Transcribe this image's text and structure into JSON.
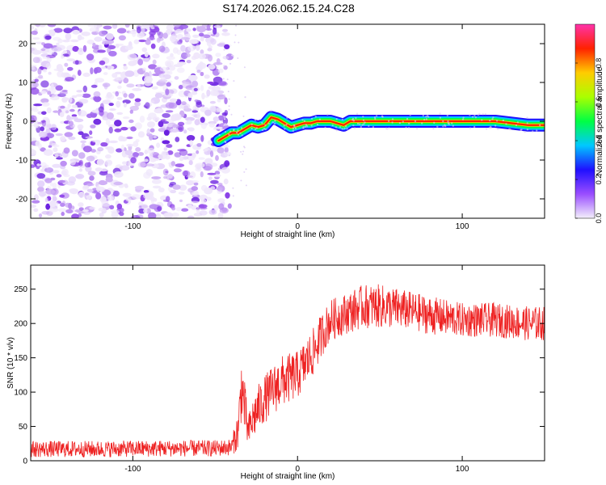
{
  "title": "S174.2026.062.15.24.C28",
  "chart_data": [
    {
      "type": "heatmap",
      "name": "spectrogram",
      "xlabel": "Height of straight line (km)",
      "ylabel": "Frequency (Hz)",
      "xlim": [
        -162,
        150
      ],
      "ylim": [
        -25,
        25
      ],
      "xticks": [
        -100,
        0,
        100
      ],
      "yticks": [
        -20,
        -10,
        0,
        10,
        20
      ],
      "noise_region_x": [
        -162,
        -45
      ],
      "signal_track": {
        "x": [
          -48,
          -44,
          -40,
          -36,
          -32,
          -28,
          -24,
          -20,
          -16,
          -12,
          -8,
          -4,
          0,
          4,
          8,
          12,
          16,
          20,
          24,
          28,
          32,
          36,
          40,
          50,
          60,
          80,
          100,
          120,
          140,
          150
        ],
        "freq": [
          -5,
          -4,
          -3,
          -3,
          -2,
          -1,
          -1.5,
          -1,
          1,
          0.5,
          -0.5,
          -1.5,
          -1,
          -0.5,
          -0.5,
          0,
          0,
          0,
          -0.5,
          -1,
          0,
          0,
          0,
          0,
          0,
          0,
          0,
          0,
          -1,
          -1
        ]
      },
      "colorbar": {
        "label": "Normalized spectral amplitude",
        "range": [
          0,
          1
        ],
        "ticks": [
          "0.0",
          "0.2",
          "0.4",
          "0.6",
          "0.8"
        ],
        "tick_values": [
          0,
          0.2,
          0.4,
          0.6,
          0.8
        ],
        "colors": [
          "#f4f0fb",
          "#9a4dff",
          "#1f10ff",
          "#00c8ff",
          "#00ff44",
          "#aaff00",
          "#ffcc00",
          "#ff2200",
          "#ff33aa"
        ]
      }
    },
    {
      "type": "line",
      "name": "snr",
      "xlabel": "Height of straight line (km)",
      "ylabel": "SNR (10 * v/v)",
      "xlim": [
        -162,
        150
      ],
      "ylim": [
        0,
        285
      ],
      "xticks": [
        -100,
        0,
        100
      ],
      "yticks": [
        0,
        50,
        100,
        150,
        200,
        250
      ],
      "color": "#ee2222",
      "envelope": {
        "x": [
          -162,
          -120,
          -80,
          -50,
          -40,
          -36,
          -34,
          -32,
          -30,
          -28,
          -25,
          -20,
          -10,
          0,
          10,
          15,
          20,
          30,
          40,
          50,
          60,
          70,
          80,
          100,
          120,
          140,
          150
        ],
        "mean": [
          17,
          17,
          18,
          18,
          20,
          45,
          110,
          75,
          40,
          55,
          72,
          90,
          115,
          125,
          160,
          185,
          205,
          215,
          225,
          225,
          222,
          218,
          212,
          205,
          205,
          200,
          200
        ],
        "spread": [
          12,
          12,
          12,
          12,
          12,
          30,
          50,
          40,
          25,
          30,
          35,
          35,
          38,
          35,
          35,
          32,
          30,
          30,
          32,
          32,
          30,
          28,
          28,
          25,
          25,
          25,
          25
        ]
      }
    }
  ]
}
